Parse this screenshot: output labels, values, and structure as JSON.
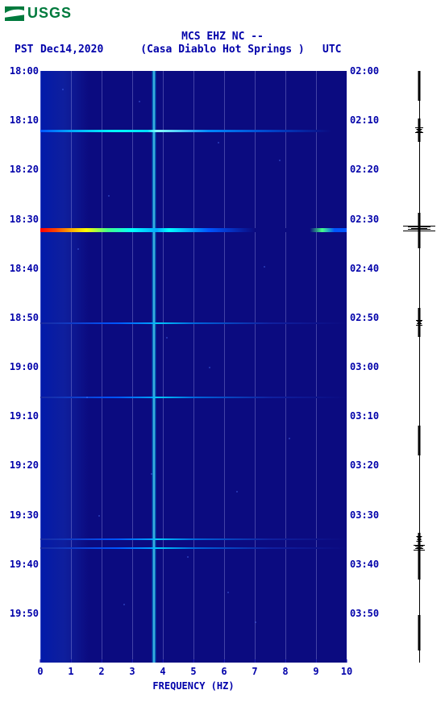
{
  "logo_text": "USGS",
  "title_line1": "MCS EHZ NC --",
  "title_line2": "(Casa Diablo Hot Springs )",
  "header": {
    "left_tz": "PST",
    "date": "Dec14,2020",
    "right_tz": "UTC"
  },
  "spectrogram": {
    "type": "spectrogram",
    "x_axis": {
      "label": "FREQUENCY (HZ)",
      "min": 0,
      "max": 10,
      "ticks": [
        0,
        1,
        2,
        3,
        4,
        5,
        6,
        7,
        8,
        9,
        10
      ]
    },
    "left_time_axis": {
      "label": "PST",
      "start": "18:00",
      "end": "20:00",
      "ticks": [
        "18:00",
        "18:10",
        "18:20",
        "18:30",
        "18:40",
        "18:50",
        "19:00",
        "19:10",
        "19:20",
        "19:30",
        "19:40",
        "19:50"
      ]
    },
    "right_time_axis": {
      "label": "UTC",
      "start": "02:00",
      "end": "04:00",
      "ticks": [
        "02:00",
        "02:10",
        "02:20",
        "02:30",
        "02:40",
        "02:50",
        "03:00",
        "03:10",
        "03:20",
        "03:30",
        "03:40",
        "03:50"
      ]
    },
    "background_color": "#0b0b80",
    "grid_color": "rgba(200,200,255,0.3)",
    "colormap": [
      "#0b0b80",
      "#0033cc",
      "#0088ff",
      "#00ffff",
      "#44ff88",
      "#ffff00",
      "#ff8800",
      "#ff0000"
    ],
    "persistent_band_hz": 3.7,
    "persistent_band_width_hz": 0.15,
    "events": [
      {
        "time_pst": "18:12",
        "time_frac": 0.1,
        "strength": "medium"
      },
      {
        "time_pst": "18:32",
        "time_frac": 0.265,
        "strength": "strong"
      },
      {
        "time_pst": "18:51",
        "time_frac": 0.425,
        "strength": "faint"
      },
      {
        "time_pst": "19:06",
        "time_frac": 0.55,
        "strength": "faint"
      },
      {
        "time_pst": "19:35",
        "time_frac": 0.79,
        "strength": "faint"
      },
      {
        "time_pst": "19:37",
        "time_frac": 0.805,
        "strength": "faint"
      }
    ],
    "noise_specks": [
      [
        0.07,
        0.03
      ],
      [
        0.22,
        0.21
      ],
      [
        0.58,
        0.12
      ],
      [
        0.41,
        0.45
      ],
      [
        0.73,
        0.33
      ],
      [
        0.81,
        0.62
      ],
      [
        0.15,
        0.55
      ],
      [
        0.36,
        0.68
      ],
      [
        0.64,
        0.71
      ],
      [
        0.48,
        0.82
      ],
      [
        0.27,
        0.9
      ],
      [
        0.7,
        0.93
      ],
      [
        0.12,
        0.3
      ],
      [
        0.55,
        0.5
      ],
      [
        0.78,
        0.15
      ],
      [
        0.32,
        0.05
      ],
      [
        0.61,
        0.88
      ],
      [
        0.19,
        0.75
      ]
    ]
  },
  "side_seismograph": {
    "bursts": [
      {
        "time_frac": 0.1,
        "amplitude": 0.25
      },
      {
        "time_frac": 0.265,
        "amplitude": 1.0
      },
      {
        "time_frac": 0.425,
        "amplitude": 0.2
      },
      {
        "time_frac": 0.79,
        "amplitude": 0.18
      },
      {
        "time_frac": 0.805,
        "amplitude": 0.35
      }
    ],
    "dot_runs": [
      {
        "start": 0.0,
        "end": 0.05
      },
      {
        "start": 0.08,
        "end": 0.12
      },
      {
        "start": 0.24,
        "end": 0.3
      },
      {
        "start": 0.4,
        "end": 0.45
      },
      {
        "start": 0.6,
        "end": 0.65
      },
      {
        "start": 0.78,
        "end": 0.86
      },
      {
        "start": 0.92,
        "end": 0.98
      }
    ]
  },
  "colors": {
    "text": "#0000aa",
    "logo": "#007a3d",
    "background": "#ffffff"
  }
}
